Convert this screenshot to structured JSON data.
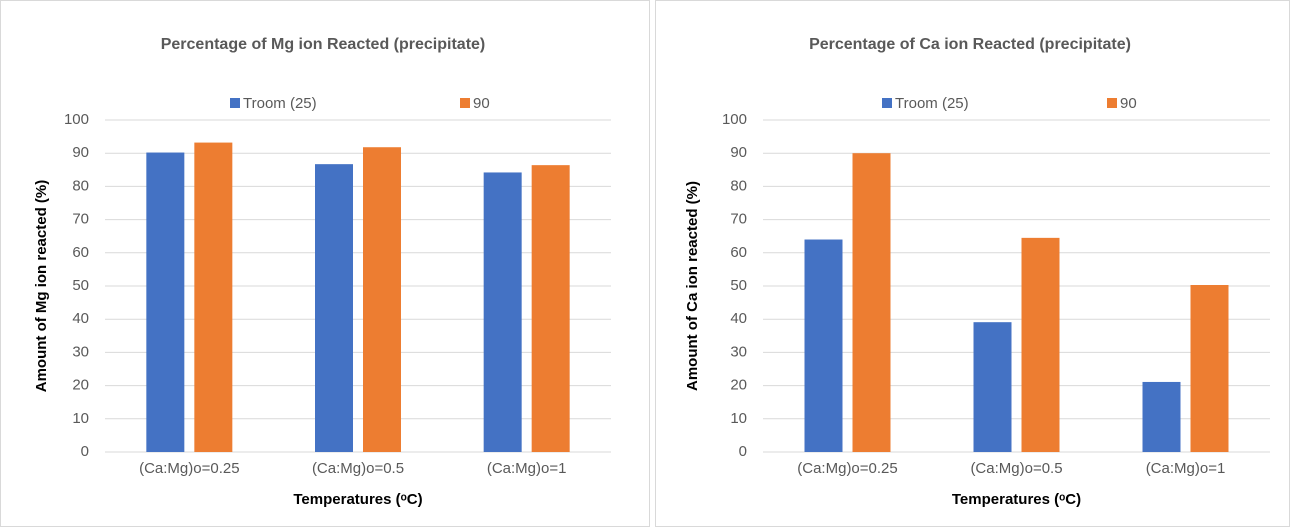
{
  "chart_data": [
    {
      "type": "bar",
      "title": "Percentage of Mg ion Reacted (precipitate)",
      "x_label": "Temperatures (ᵒC)",
      "y_label": "Amount of Mg ion reacted (%)",
      "categories": [
        "(Ca:Mg)o=0.25",
        "(Ca:Mg)o=0.5",
        "(Ca:Mg)o=1"
      ],
      "series": [
        {
          "name": "Troom (25)",
          "color": "#4472c4",
          "values": [
            90.2,
            86.7,
            84.2
          ]
        },
        {
          "name": "90",
          "color": "#ed7d31",
          "values": [
            93.2,
            91.8,
            86.4
          ]
        }
      ],
      "ylim": [
        0,
        100
      ],
      "yticks": [
        0,
        10,
        20,
        30,
        40,
        50,
        60,
        70,
        80,
        90,
        100
      ],
      "grid": true,
      "legend": "top"
    },
    {
      "type": "bar",
      "title": "Percentage of Ca ion Reacted (precipitate)",
      "x_label": "Temperatures (ᵒC)",
      "y_label": "Amount of Ca ion reacted (%)",
      "categories": [
        "(Ca:Mg)o=0.25",
        "(Ca:Mg)o=0.5",
        "(Ca:Mg)o=1"
      ],
      "series": [
        {
          "name": "Troom (25)",
          "color": "#4472c4",
          "values": [
            64,
            39.1,
            21.1
          ]
        },
        {
          "name": "90",
          "color": "#ed7d31",
          "values": [
            90,
            64.5,
            50.3
          ]
        }
      ],
      "ylim": [
        0,
        100
      ],
      "yticks": [
        0,
        10,
        20,
        30,
        40,
        50,
        60,
        70,
        80,
        90,
        100
      ],
      "grid": true,
      "legend": "top"
    }
  ]
}
